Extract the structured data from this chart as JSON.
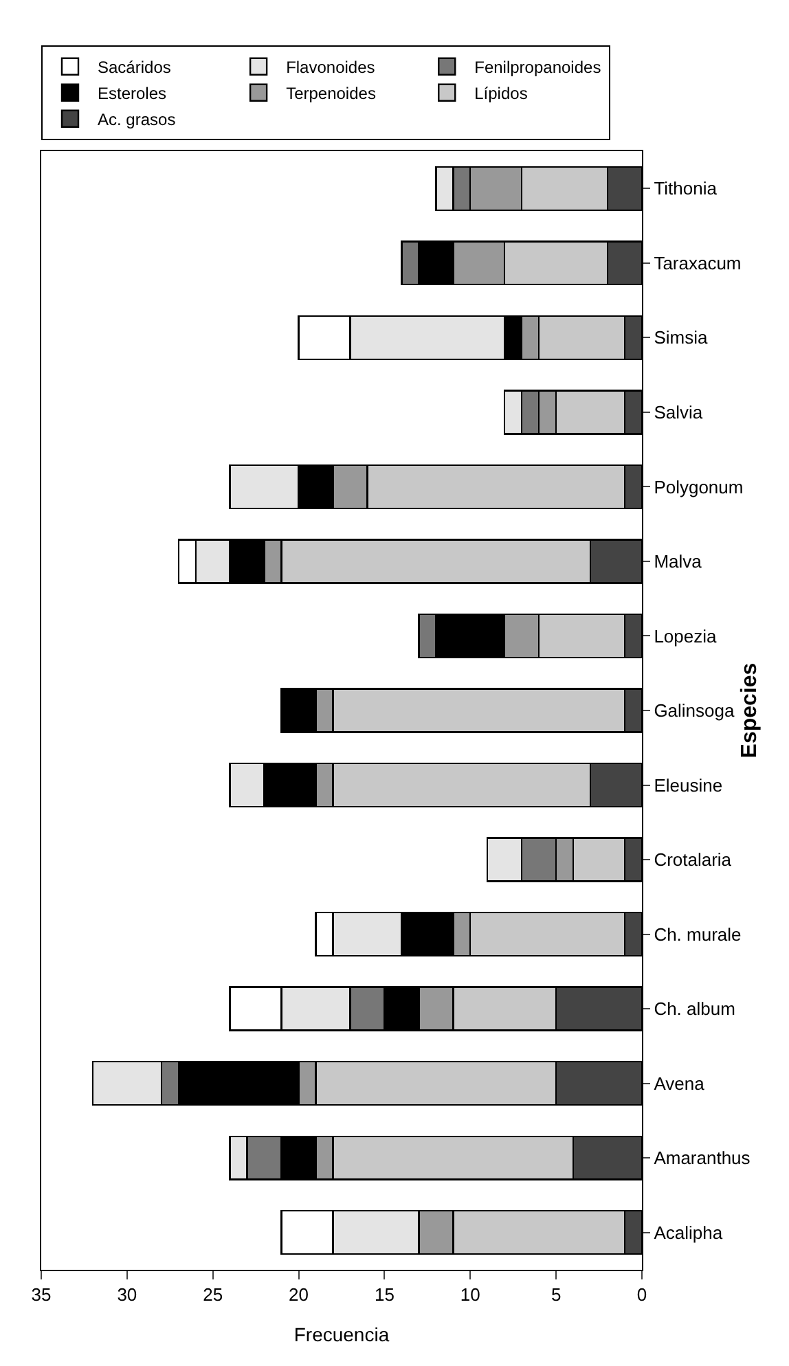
{
  "chart_data": {
    "type": "bar",
    "orientation": "horizontal",
    "stacked": true,
    "xlabel": "Frecuencia",
    "ylabel": "Especies",
    "categories": [
      "Tithonia",
      "Taraxacum",
      "Simsia",
      "Salvia",
      "Polygonum",
      "Malva",
      "Lopezia",
      "Galinsoga",
      "Eleusine",
      "Crotalaria",
      "Ch. murale",
      "Ch. album",
      "Avena",
      "Amaranthus",
      "Acalipha"
    ],
    "series": [
      {
        "name": "Ac. grasos",
        "color": "#444444",
        "values": [
          2,
          2,
          1,
          1,
          1,
          3,
          1,
          1,
          3,
          1,
          1,
          5,
          5,
          4,
          1
        ]
      },
      {
        "name": "Lípidos",
        "color": "#c8c8c8",
        "values": [
          5,
          6,
          5,
          4,
          15,
          18,
          5,
          17,
          15,
          3,
          9,
          6,
          14,
          14,
          10
        ]
      },
      {
        "name": "Terpenoides",
        "color": "#999999",
        "values": [
          3,
          3,
          1,
          1,
          2,
          1,
          2,
          1,
          1,
          1,
          1,
          2,
          1,
          1,
          2
        ]
      },
      {
        "name": "Esteroles",
        "color": "#000000",
        "values": [
          0,
          2,
          1,
          0,
          2,
          2,
          4,
          2,
          3,
          0,
          3,
          2,
          7,
          2,
          0
        ]
      },
      {
        "name": "Fenilpropanoides",
        "color": "#777777",
        "values": [
          1,
          1,
          0,
          1,
          0,
          0,
          1,
          0,
          0,
          2,
          0,
          2,
          1,
          2,
          0
        ]
      },
      {
        "name": "Flavonoides",
        "color": "#e4e4e4",
        "values": [
          1,
          0,
          9,
          1,
          4,
          2,
          0,
          0,
          2,
          2,
          4,
          4,
          4,
          1,
          5
        ]
      },
      {
        "name": "Sacáridos",
        "color": "#ffffff",
        "values": [
          0,
          0,
          3,
          0,
          0,
          1,
          0,
          0,
          0,
          0,
          1,
          3,
          0,
          0,
          3
        ]
      }
    ],
    "xlim": [
      35,
      0
    ],
    "xticks": [
      35,
      30,
      25,
      20,
      15,
      10,
      5,
      0
    ],
    "grid": false,
    "legend": "top left"
  }
}
